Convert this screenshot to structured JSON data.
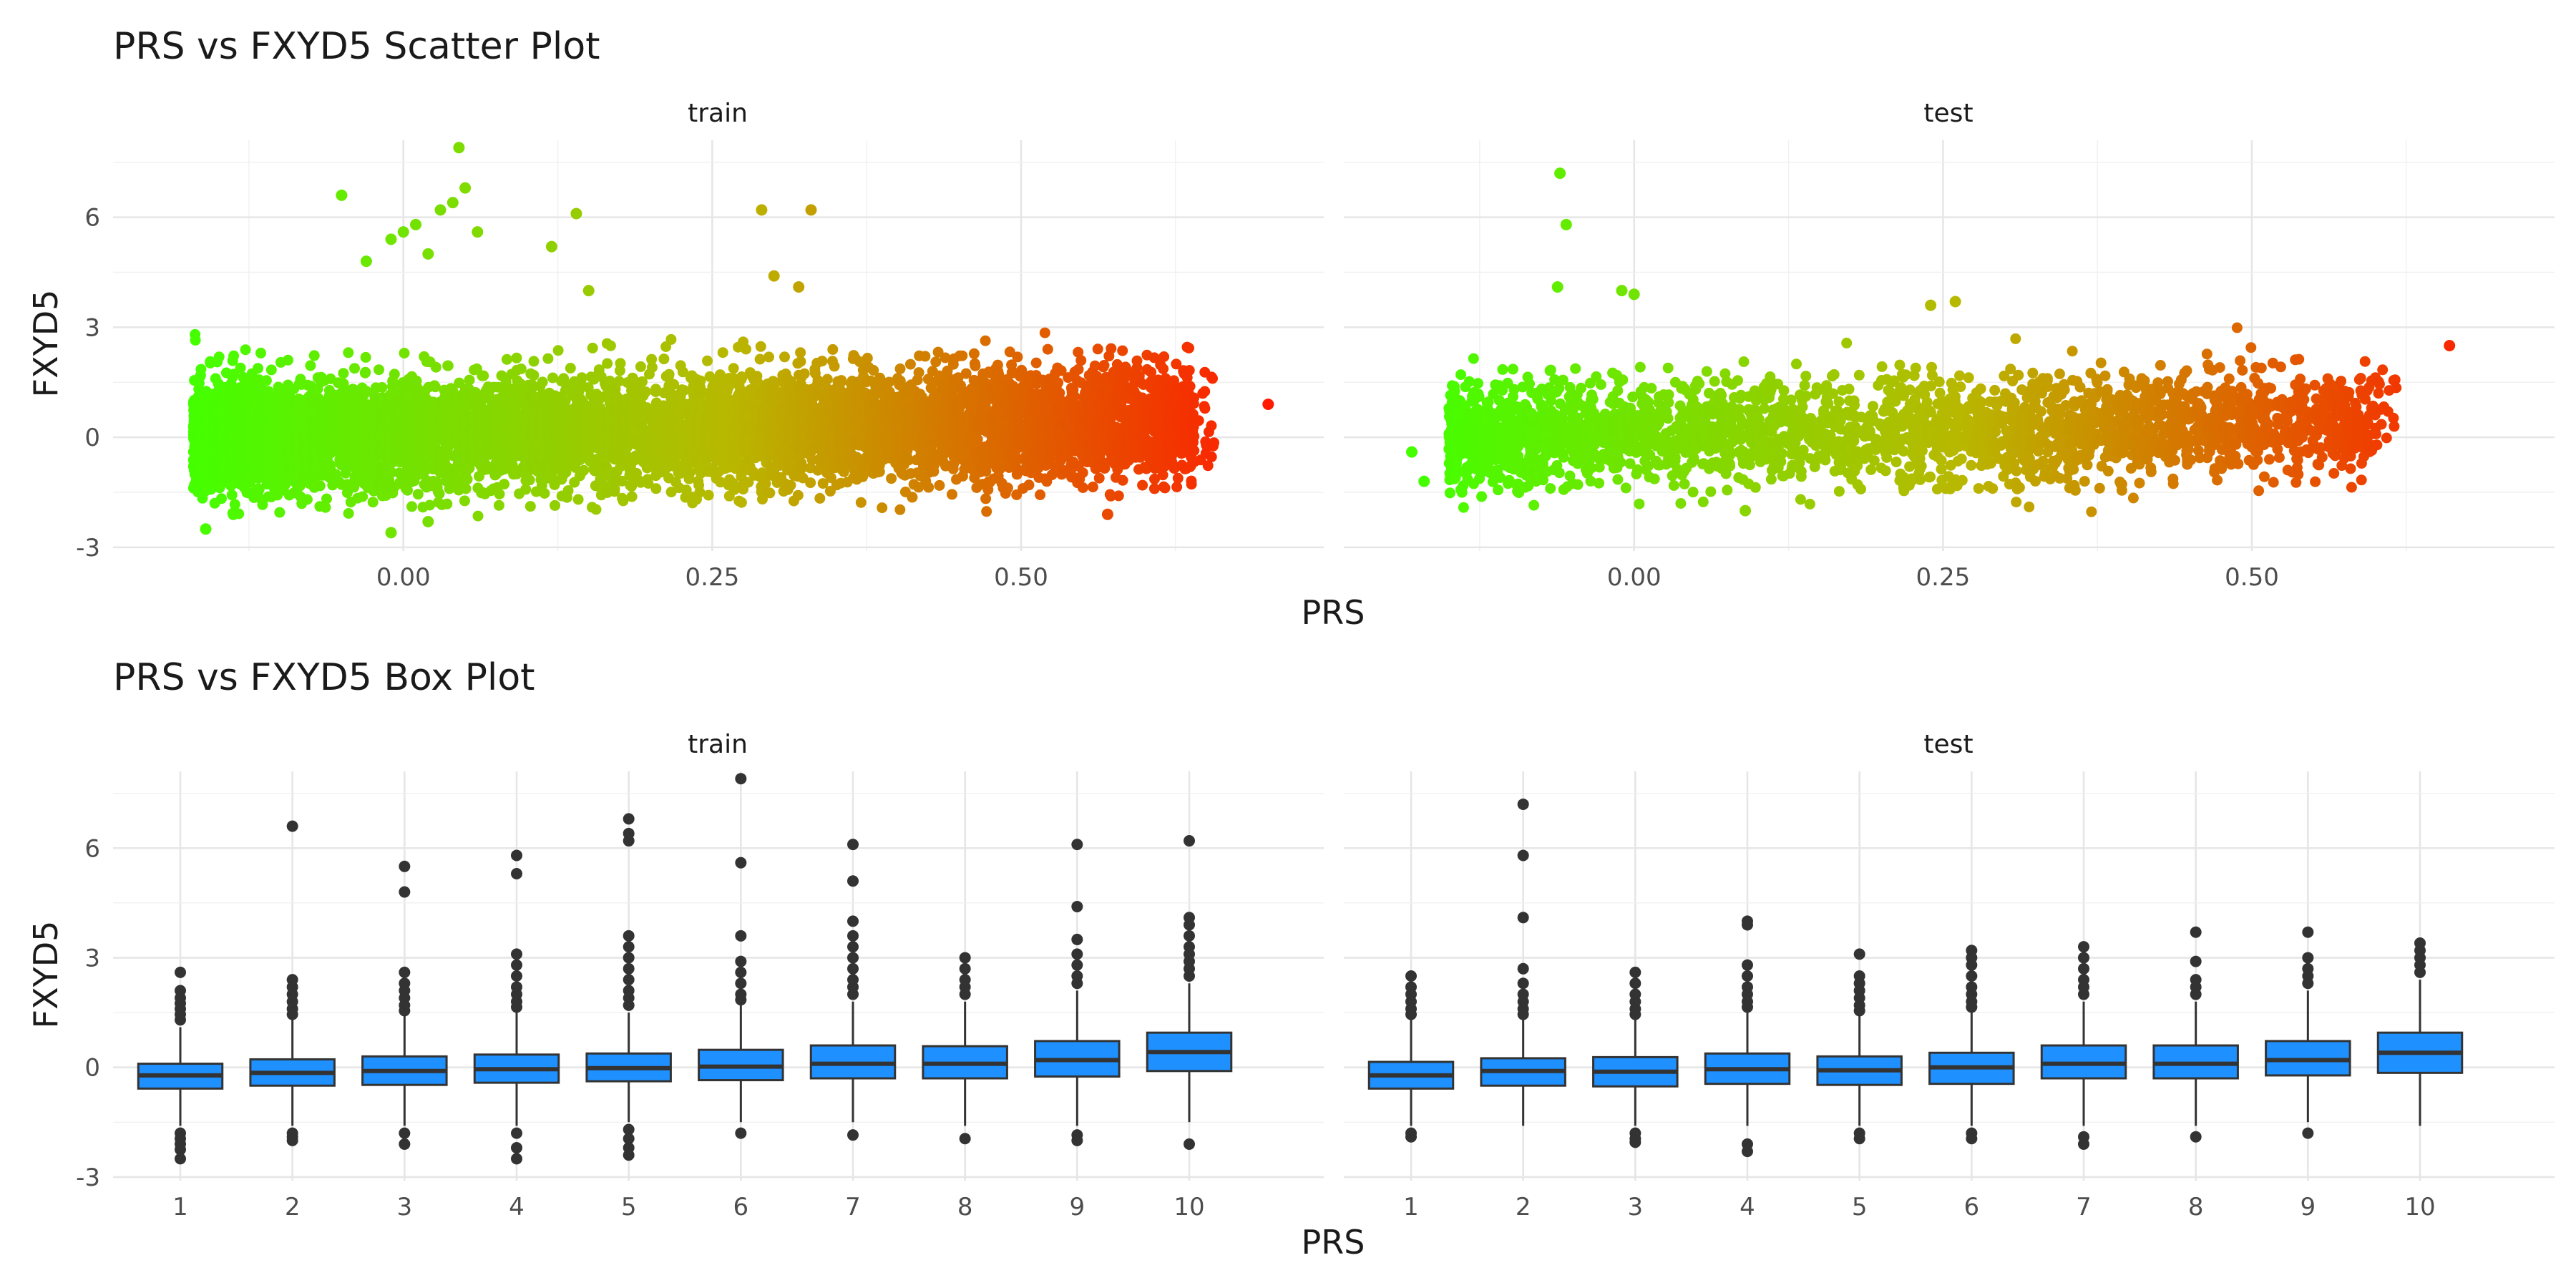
{
  "chart_data": [
    {
      "type": "scatter",
      "title": "PRS vs FXYD5 Scatter Plot",
      "xlabel": "PRS",
      "ylabel": "FXYD5",
      "facets": [
        "train",
        "test"
      ],
      "xlim": [
        -0.235,
        0.745
      ],
      "ylim": [
        -3.1,
        8.1
      ],
      "x_ticks": [
        0.0,
        0.25,
        0.5
      ],
      "x_tick_labels": [
        "0.00",
        "0.25",
        "0.50"
      ],
      "y_ticks": [
        -3,
        0,
        3,
        6
      ],
      "y_tick_labels": [
        "-3",
        "0",
        "3",
        "6"
      ],
      "grid": true,
      "color_scale": {
        "low": "#44ff00",
        "mid": "#b8b800",
        "high": "#ff1a00",
        "mapped_to": "x"
      },
      "panels": [
        {
          "facet": "train",
          "n_points": 6500,
          "x_range": [
            -0.17,
            0.7
          ],
          "y_center": 0.1,
          "y_spread_sd": 0.9,
          "outliers": [
            [
              -0.05,
              6.6
            ],
            [
              -0.03,
              4.8
            ],
            [
              -0.01,
              5.4
            ],
            [
              0.0,
              5.6
            ],
            [
              0.01,
              5.8
            ],
            [
              0.02,
              5.0
            ],
            [
              0.03,
              6.2
            ],
            [
              0.04,
              6.4
            ],
            [
              0.045,
              7.9
            ],
            [
              0.05,
              6.8
            ],
            [
              0.06,
              5.6
            ],
            [
              0.12,
              5.2
            ],
            [
              0.14,
              6.1
            ],
            [
              0.15,
              4.0
            ],
            [
              0.29,
              6.2
            ],
            [
              0.33,
              6.2
            ],
            [
              0.3,
              4.4
            ],
            [
              0.32,
              4.1
            ],
            [
              0.7,
              0.9
            ],
            [
              0.57,
              -2.1
            ],
            [
              -0.16,
              -2.5
            ],
            [
              -0.01,
              -2.6
            ],
            [
              0.02,
              -2.3
            ]
          ]
        },
        {
          "facet": "test",
          "n_points": 2600,
          "x_range": [
            -0.15,
            0.66
          ],
          "y_center": 0.1,
          "y_spread_sd": 0.85,
          "outliers": [
            [
              -0.06,
              7.2
            ],
            [
              -0.055,
              5.8
            ],
            [
              -0.062,
              4.1
            ],
            [
              -0.01,
              4.0
            ],
            [
              0.0,
              3.9
            ],
            [
              0.24,
              3.6
            ],
            [
              0.26,
              3.7
            ],
            [
              0.66,
              2.5
            ],
            [
              -0.18,
              -0.4
            ],
            [
              -0.17,
              -1.2
            ],
            [
              0.09,
              -2.0
            ]
          ]
        }
      ]
    },
    {
      "type": "box",
      "title": "PRS vs FXYD5 Box Plot",
      "xlabel": "PRS",
      "ylabel": "FXYD5",
      "facets": [
        "train",
        "test"
      ],
      "categories": [
        "1",
        "2",
        "3",
        "4",
        "5",
        "6",
        "7",
        "8",
        "9",
        "10"
      ],
      "ylim": [
        -3.1,
        8.1
      ],
      "y_ticks": [
        -3,
        0,
        3,
        6
      ],
      "y_tick_labels": [
        "-3",
        "0",
        "3",
        "6"
      ],
      "grid": true,
      "box_fill": "#1e90ff",
      "box_stroke": "#333333",
      "panels": [
        {
          "facet": "train",
          "boxes": [
            {
              "q1": -0.58,
              "median": -0.22,
              "q3": 0.1,
              "low": -1.6,
              "high": 1.1,
              "outliers_high": [
                1.3,
                1.45,
                1.6,
                1.75,
                1.9,
                2.1,
                2.6
              ],
              "outliers_low": [
                -1.8,
                -1.95,
                -2.1,
                -2.25,
                -2.5
              ]
            },
            {
              "q1": -0.5,
              "median": -0.15,
              "q3": 0.22,
              "low": -1.6,
              "high": 1.3,
              "outliers_high": [
                1.45,
                1.6,
                1.8,
                2.0,
                2.2,
                2.4,
                6.6
              ],
              "outliers_low": [
                -1.8,
                -1.9,
                -2.0
              ]
            },
            {
              "q1": -0.48,
              "median": -0.1,
              "q3": 0.3,
              "low": -1.6,
              "high": 1.4,
              "outliers_high": [
                1.55,
                1.7,
                1.9,
                2.1,
                2.3,
                2.6,
                4.8,
                5.5
              ],
              "outliers_low": [
                -1.8,
                -2.1
              ]
            },
            {
              "q1": -0.42,
              "median": -0.05,
              "q3": 0.35,
              "low": -1.6,
              "high": 1.5,
              "outliers_high": [
                1.65,
                1.8,
                2.0,
                2.2,
                2.5,
                2.8,
                3.1,
                5.3,
                5.8
              ],
              "outliers_low": [
                -1.8,
                -2.2,
                -2.5
              ]
            },
            {
              "q1": -0.38,
              "median": -0.02,
              "q3": 0.38,
              "low": -1.5,
              "high": 1.5,
              "outliers_high": [
                1.7,
                1.9,
                2.1,
                2.4,
                2.7,
                3.0,
                3.3,
                3.6,
                6.2,
                6.4,
                6.8
              ],
              "outliers_low": [
                -1.7,
                -1.95,
                -2.2,
                -2.4
              ]
            },
            {
              "q1": -0.35,
              "median": 0.02,
              "q3": 0.48,
              "low": -1.5,
              "high": 1.7,
              "outliers_high": [
                1.85,
                2.0,
                2.3,
                2.6,
                2.9,
                3.6,
                5.6,
                7.9
              ],
              "outliers_low": [
                -1.8
              ]
            },
            {
              "q1": -0.3,
              "median": 0.1,
              "q3": 0.6,
              "low": -1.5,
              "high": 1.8,
              "outliers_high": [
                2.0,
                2.2,
                2.4,
                2.7,
                3.0,
                3.3,
                3.6,
                4.0,
                5.1,
                6.1
              ],
              "outliers_low": [
                -1.85
              ]
            },
            {
              "q1": -0.3,
              "median": 0.1,
              "q3": 0.58,
              "low": -1.6,
              "high": 1.8,
              "outliers_high": [
                2.0,
                2.2,
                2.4,
                2.7,
                3.0
              ],
              "outliers_low": [
                -1.95
              ]
            },
            {
              "q1": -0.25,
              "median": 0.2,
              "q3": 0.72,
              "low": -1.6,
              "high": 2.1,
              "outliers_high": [
                2.3,
                2.5,
                2.8,
                3.1,
                3.5,
                4.4,
                6.1
              ],
              "outliers_low": [
                -1.85,
                -2.0
              ]
            },
            {
              "q1": -0.1,
              "median": 0.42,
              "q3": 0.95,
              "low": -1.5,
              "high": 2.3,
              "outliers_high": [
                2.5,
                2.7,
                2.9,
                3.1,
                3.3,
                3.6,
                3.9,
                4.1,
                6.2
              ],
              "outliers_low": [
                -2.1
              ]
            }
          ]
        },
        {
          "facet": "test",
          "boxes": [
            {
              "q1": -0.58,
              "median": -0.22,
              "q3": 0.15,
              "low": -1.6,
              "high": 1.3,
              "outliers_high": [
                1.45,
                1.6,
                1.8,
                2.0,
                2.2,
                2.5
              ],
              "outliers_low": [
                -1.8,
                -1.9
              ]
            },
            {
              "q1": -0.5,
              "median": -0.1,
              "q3": 0.25,
              "low": -1.6,
              "high": 1.3,
              "outliers_high": [
                1.45,
                1.6,
                1.8,
                2.0,
                2.3,
                2.7,
                4.1,
                5.8,
                7.2
              ],
              "outliers_low": []
            },
            {
              "q1": -0.52,
              "median": -0.12,
              "q3": 0.28,
              "low": -1.6,
              "high": 1.3,
              "outliers_high": [
                1.45,
                1.6,
                1.8,
                2.0,
                2.3,
                2.6
              ],
              "outliers_low": [
                -1.8,
                -1.95,
                -2.05
              ]
            },
            {
              "q1": -0.45,
              "median": -0.05,
              "q3": 0.38,
              "low": -1.6,
              "high": 1.5,
              "outliers_high": [
                1.65,
                1.8,
                2.0,
                2.2,
                2.5,
                2.8,
                3.9,
                4.0
              ],
              "outliers_low": [
                -2.1,
                -2.3
              ]
            },
            {
              "q1": -0.48,
              "median": -0.08,
              "q3": 0.3,
              "low": -1.6,
              "high": 1.4,
              "outliers_high": [
                1.55,
                1.7,
                1.9,
                2.1,
                2.3,
                2.5,
                3.1
              ],
              "outliers_low": [
                -1.8,
                -1.95
              ]
            },
            {
              "q1": -0.45,
              "median": 0.0,
              "q3": 0.4,
              "low": -1.6,
              "high": 1.5,
              "outliers_high": [
                1.65,
                1.8,
                2.0,
                2.2,
                2.5,
                2.8,
                3.0,
                3.2
              ],
              "outliers_low": [
                -1.8,
                -1.95
              ]
            },
            {
              "q1": -0.3,
              "median": 0.1,
              "q3": 0.6,
              "low": -1.6,
              "high": 1.8,
              "outliers_high": [
                2.0,
                2.2,
                2.4,
                2.7,
                3.0,
                3.3
              ],
              "outliers_low": [
                -1.9,
                -2.1
              ]
            },
            {
              "q1": -0.3,
              "median": 0.1,
              "q3": 0.6,
              "low": -1.6,
              "high": 1.8,
              "outliers_high": [
                2.0,
                2.2,
                2.4,
                2.9,
                3.7
              ],
              "outliers_low": [
                -1.9
              ]
            },
            {
              "q1": -0.22,
              "median": 0.2,
              "q3": 0.72,
              "low": -1.5,
              "high": 2.1,
              "outliers_high": [
                2.3,
                2.5,
                2.7,
                3.0,
                3.7
              ],
              "outliers_low": [
                -1.8
              ]
            },
            {
              "q1": -0.15,
              "median": 0.4,
              "q3": 0.95,
              "low": -1.6,
              "high": 2.4,
              "outliers_high": [
                2.6,
                2.8,
                3.0,
                3.2,
                3.4
              ],
              "outliers_low": []
            }
          ]
        }
      ]
    }
  ]
}
